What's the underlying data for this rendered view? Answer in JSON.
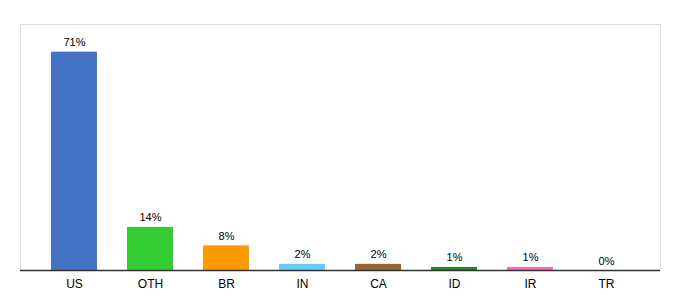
{
  "chart_data": {
    "type": "bar",
    "categories": [
      "US",
      "OTH",
      "BR",
      "IN",
      "CA",
      "ID",
      "IR",
      "TR"
    ],
    "values": [
      71,
      14,
      8,
      2,
      2,
      1,
      1,
      0
    ],
    "value_labels": [
      "71%",
      "14%",
      "8%",
      "2%",
      "2%",
      "1%",
      "1%",
      "0%"
    ],
    "colors": [
      "#4472C4",
      "#33CC33",
      "#FF9900",
      "#66CCFF",
      "#996633",
      "#228B22",
      "#FF69B4",
      "#CC6666"
    ],
    "ylim": [
      0,
      80
    ],
    "grid": false,
    "data_labels": true,
    "tick_labels": "x"
  }
}
